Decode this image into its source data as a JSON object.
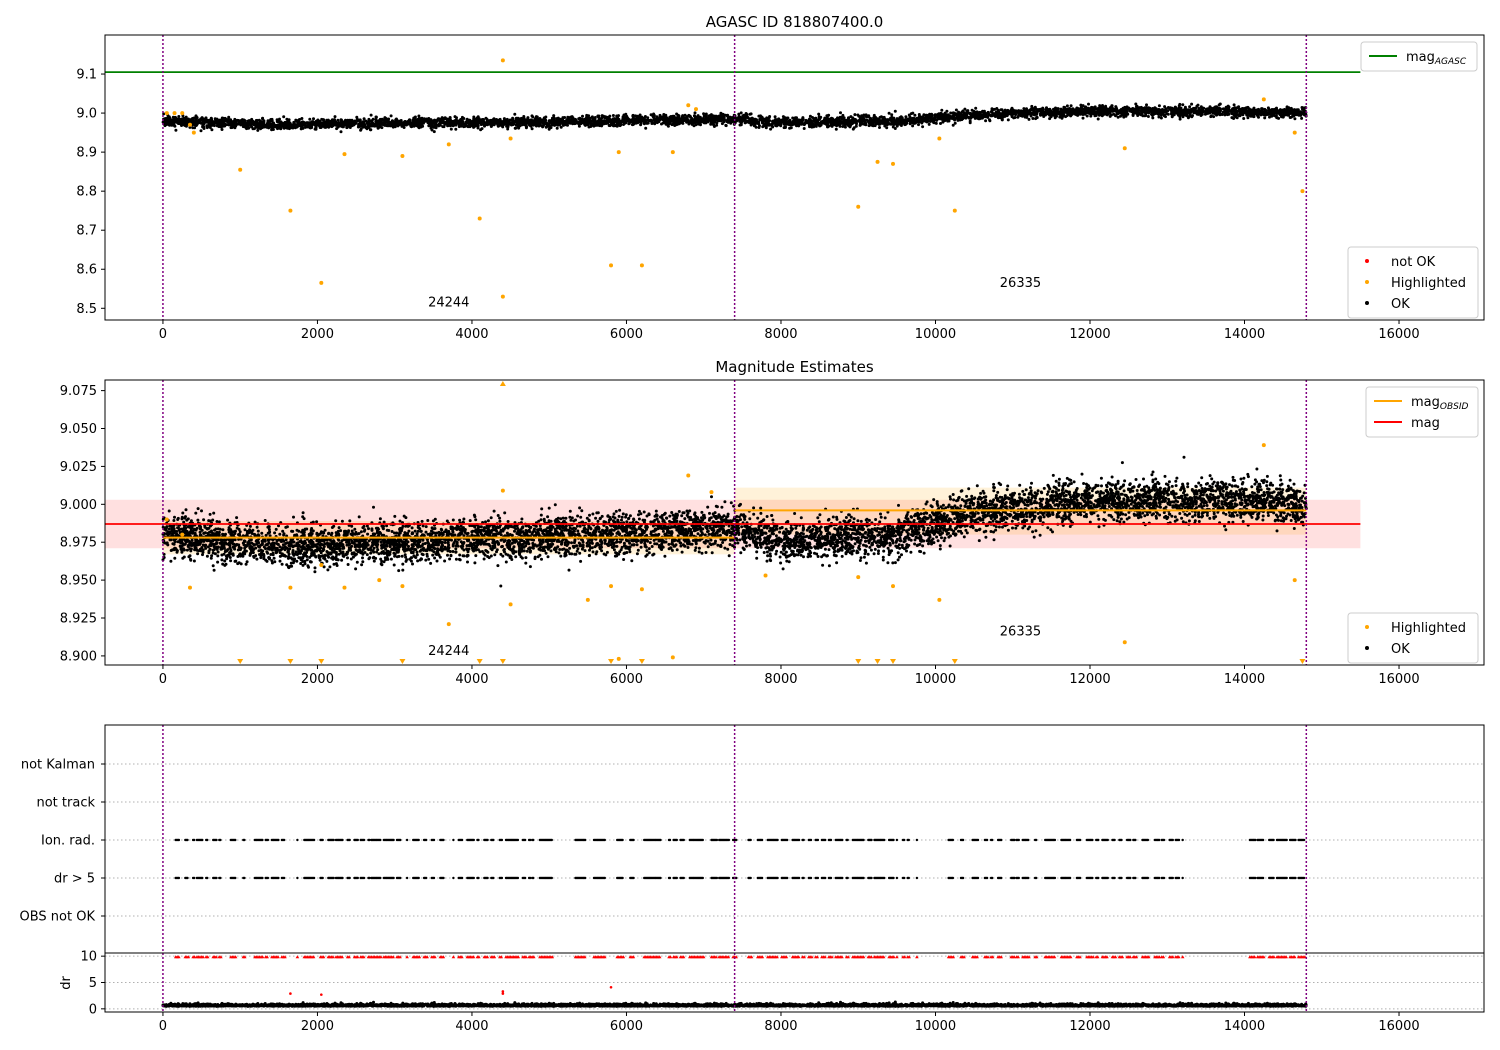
{
  "chart_data": [
    {
      "type": "scatter",
      "title": "AGASC ID 818807400.0",
      "xlim": [
        -750,
        17100
      ],
      "ylim": [
        8.47,
        9.2
      ],
      "xticks": [
        0,
        2000,
        4000,
        6000,
        8000,
        10000,
        12000,
        14000,
        16000
      ],
      "xtick_labels": [
        "0",
        "2000",
        "4000",
        "6000",
        "8000",
        "10000",
        "12000",
        "14000",
        "16000"
      ],
      "yticks": [
        8.5,
        8.6,
        8.7,
        8.8,
        8.9,
        9.0,
        9.1
      ],
      "ytick_labels": [
        "8.5",
        "8.6",
        "8.7",
        "8.8",
        "8.9",
        "9.0",
        "9.1"
      ],
      "obsid_boundaries": [
        0,
        7400,
        14800
      ],
      "obsid_labels": [
        {
          "text": "24244",
          "x": 3700,
          "y": 8.505
        },
        {
          "text": "26335",
          "x": 11100,
          "y": 8.555
        }
      ],
      "lines": [
        {
          "name": "mag_AGASC",
          "y": 9.105,
          "x": [
            -750,
            15500
          ],
          "color": "#008000"
        }
      ],
      "ok_trend": {
        "x": [
          0,
          1500,
          3000,
          4500,
          6000,
          7400,
          8000,
          9500,
          10500,
          12000,
          13500,
          14800
        ],
        "y": [
          8.98,
          8.97,
          8.975,
          8.975,
          8.98,
          8.985,
          8.975,
          8.98,
          8.995,
          9.005,
          9.005,
          9.0
        ],
        "spread": 0.012
      },
      "highlighted": {
        "x": [
          50,
          150,
          250,
          350,
          400,
          1000,
          1650,
          2050,
          2350,
          3100,
          3700,
          4100,
          4400,
          4400,
          4500,
          5800,
          5900,
          6200,
          6600,
          6800,
          6900,
          9000,
          9250,
          9450,
          10050,
          10250,
          12450,
          14250,
          14650,
          14750
        ],
        "y": [
          9.0,
          9.0,
          9.0,
          8.97,
          8.95,
          8.855,
          8.75,
          8.565,
          8.895,
          8.89,
          8.92,
          8.73,
          9.135,
          8.53,
          8.935,
          8.61,
          8.9,
          8.61,
          8.9,
          9.02,
          9.01,
          8.76,
          8.875,
          8.87,
          8.935,
          8.75,
          8.91,
          9.035,
          8.95,
          8.8
        ]
      },
      "not_ok": {
        "x": [],
        "y": []
      },
      "legend_lines": [
        {
          "label": "mag",
          "subscript": "AGASC",
          "color": "#008000"
        }
      ],
      "legend_points": [
        {
          "label": "not OK",
          "color": "#ff0000"
        },
        {
          "label": "Highlighted",
          "color": "#ffa500"
        },
        {
          "label": "OK",
          "color": "#000000"
        }
      ],
      "legend_placement": [
        "top-right",
        "bottom-right"
      ]
    },
    {
      "type": "scatter",
      "title": "Magnitude Estimates",
      "xlim": [
        -750,
        17100
      ],
      "ylim": [
        8.894,
        9.082
      ],
      "xticks": [
        0,
        2000,
        4000,
        6000,
        8000,
        10000,
        12000,
        14000,
        16000
      ],
      "xtick_labels": [
        "0",
        "2000",
        "4000",
        "6000",
        "8000",
        "10000",
        "12000",
        "14000",
        "16000"
      ],
      "yticks": [
        8.9,
        8.925,
        8.95,
        8.975,
        9.0,
        9.025,
        9.05,
        9.075
      ],
      "ytick_labels": [
        "8.900",
        "8.925",
        "8.950",
        "8.975",
        "9.000",
        "9.025",
        "9.050",
        "9.075"
      ],
      "obsid_boundaries": [
        0,
        7400,
        14800
      ],
      "obsid_labels": [
        {
          "text": "24244",
          "x": 3700,
          "y": 8.9005
        },
        {
          "text": "26335",
          "x": 11100,
          "y": 8.9135
        }
      ],
      "mag_line": {
        "y": 8.987,
        "x": [
          -750,
          15500
        ],
        "band": [
          8.971,
          9.003
        ],
        "color": "#ff0000"
      },
      "obsid_mags": [
        {
          "x": [
            0,
            7400
          ],
          "y": 8.978,
          "band": [
            8.967,
            8.989
          ]
        },
        {
          "x": [
            7400,
            14800
          ],
          "y": 8.996,
          "band": [
            8.98,
            9.011
          ]
        }
      ],
      "ok_trend": {
        "x": [
          0,
          1500,
          3000,
          4500,
          6000,
          7400,
          8000,
          9500,
          10500,
          12000,
          13500,
          14800
        ],
        "y": [
          8.98,
          8.972,
          8.975,
          8.978,
          8.98,
          8.985,
          8.975,
          8.98,
          8.995,
          9.002,
          9.003,
          9.0
        ],
        "spread": 0.012
      },
      "highlighted": {
        "x": [
          50,
          250,
          350,
          1650,
          2050,
          2350,
          2800,
          3100,
          3700,
          4400,
          4500,
          5500,
          5800,
          5900,
          6200,
          6600,
          6800,
          7100,
          7800,
          9000,
          9450,
          10050,
          12450,
          14250,
          14650
        ],
        "y": [
          8.99,
          8.98,
          8.945,
          8.945,
          8.96,
          8.945,
          8.95,
          8.946,
          8.921,
          9.009,
          8.934,
          8.937,
          8.946,
          8.898,
          8.944,
          8.899,
          9.019,
          9.008,
          8.953,
          8.952,
          8.946,
          8.937,
          8.909,
          9.039,
          8.95
        ]
      },
      "clipped_low_x": [
        1000,
        1650,
        2050,
        3100,
        4100,
        4400,
        5800,
        6200,
        9000,
        9250,
        9450,
        10250,
        14750
      ],
      "clipped_high_x": [
        4400
      ],
      "legend_lines": [
        {
          "label": "mag",
          "subscript": "OBSID",
          "color": "#ffa500"
        },
        {
          "label": "mag",
          "subscript": "",
          "color": "#ff0000"
        }
      ],
      "legend_points": [
        {
          "label": "Highlighted",
          "color": "#ffa500"
        },
        {
          "label": "OK",
          "color": "#000000"
        }
      ],
      "legend_placement": [
        "top-right",
        "bottom-right"
      ]
    },
    {
      "type": "scatter",
      "title": "",
      "xlim": [
        -750,
        17100
      ],
      "categories": [
        "not Kalman",
        "not track",
        "Ion. rad.",
        "dr > 5",
        "OBS not OK"
      ],
      "flag_segments": [
        [
          165,
          215
        ],
        [
          290,
          330
        ],
        [
          390,
          410
        ],
        [
          440,
          520
        ],
        [
          560,
          580
        ],
        [
          650,
          700
        ],
        [
          730,
          750
        ],
        [
          880,
          940
        ],
        [
          1040,
          1060
        ],
        [
          1190,
          1290
        ],
        [
          1330,
          1360
        ],
        [
          1410,
          1500
        ],
        [
          1540,
          1580
        ],
        [
          1740,
          1750
        ],
        [
          1830,
          1960
        ],
        [
          2040,
          2080
        ],
        [
          2140,
          2210
        ],
        [
          2240,
          2330
        ],
        [
          2390,
          2420
        ],
        [
          2480,
          2530
        ],
        [
          2560,
          2610
        ],
        [
          2660,
          2680
        ],
        [
          2700,
          2820
        ],
        [
          2860,
          2990
        ],
        [
          3030,
          3080
        ],
        [
          3160,
          3170
        ],
        [
          3240,
          3320
        ],
        [
          3380,
          3420
        ],
        [
          3480,
          3520
        ],
        [
          3590,
          3640
        ],
        [
          3760,
          3770
        ],
        [
          3830,
          3880
        ],
        [
          3940,
          4030
        ],
        [
          4070,
          4090
        ],
        [
          4160,
          4210
        ],
        [
          4250,
          4290
        ],
        [
          4360,
          4390
        ],
        [
          4440,
          4600
        ],
        [
          4660,
          4700
        ],
        [
          4740,
          4760
        ],
        [
          4780,
          4800
        ],
        [
          4880,
          5040
        ],
        [
          5340,
          5470
        ],
        [
          5580,
          5720
        ],
        [
          5880,
          5960
        ],
        [
          6050,
          6100
        ],
        [
          6230,
          6440
        ],
        [
          6550,
          6570
        ],
        [
          6610,
          6660
        ],
        [
          6700,
          6750
        ],
        [
          6820,
          7000
        ],
        [
          7100,
          7170
        ],
        [
          7200,
          7330
        ],
        [
          7380,
          7430
        ],
        [
          7580,
          7620
        ],
        [
          7700,
          7760
        ],
        [
          7830,
          7960
        ],
        [
          8010,
          8080
        ],
        [
          8150,
          8240
        ],
        [
          8280,
          8300
        ],
        [
          8360,
          8400
        ],
        [
          8450,
          8480
        ],
        [
          8530,
          8580
        ],
        [
          8620,
          8660
        ],
        [
          8710,
          8800
        ],
        [
          8850,
          8870
        ],
        [
          8930,
          9070
        ],
        [
          9130,
          9180
        ],
        [
          9210,
          9340
        ],
        [
          9400,
          9460
        ],
        [
          9500,
          9510
        ],
        [
          9580,
          9600
        ],
        [
          9640,
          9660
        ],
        [
          9760,
          9770
        ],
        [
          10170,
          10230
        ],
        [
          10330,
          10370
        ],
        [
          10480,
          10550
        ],
        [
          10640,
          10680
        ],
        [
          10720,
          10740
        ],
        [
          10810,
          10860
        ],
        [
          10980,
          11030
        ],
        [
          11050,
          11080
        ],
        [
          11130,
          11210
        ],
        [
          11290,
          11310
        ],
        [
          11420,
          11550
        ],
        [
          11630,
          11750
        ],
        [
          11830,
          11880
        ],
        [
          11960,
          12040
        ],
        [
          12080,
          12110
        ],
        [
          12160,
          12230
        ],
        [
          12290,
          12330
        ],
        [
          12380,
          12420
        ],
        [
          12480,
          12530
        ],
        [
          12560,
          12600
        ],
        [
          12680,
          12760
        ],
        [
          12840,
          12900
        ],
        [
          12930,
          12960
        ],
        [
          13030,
          13080
        ],
        [
          13110,
          13160
        ],
        [
          13200,
          13210
        ],
        [
          14070,
          14140
        ],
        [
          14170,
          14250
        ],
        [
          14320,
          14380
        ],
        [
          14420,
          14550
        ],
        [
          14590,
          14660
        ],
        [
          14700,
          14780
        ]
      ],
      "flag_rows": [
        "Ion. rad.",
        "dr > 5"
      ]
    },
    {
      "type": "scatter",
      "title": "",
      "ylabel": "dr",
      "xlim": [
        -750,
        17100
      ],
      "ylim": [
        -0.6,
        10.6
      ],
      "yticks": [
        0,
        5,
        10
      ],
      "ytick_labels": [
        "0",
        "5",
        "10"
      ],
      "xticks": [
        0,
        2000,
        4000,
        6000,
        8000,
        10000,
        12000,
        14000,
        16000
      ],
      "xtick_labels": [
        "0",
        "2000",
        "4000",
        "6000",
        "8000",
        "10000",
        "12000",
        "14000",
        "16000"
      ],
      "dr_trend": {
        "mean": 0.6,
        "spread": 0.35
      },
      "dr_outliers": {
        "x": [
          1650,
          2050,
          4400,
          4400,
          5800
        ],
        "y": [
          2.9,
          2.7,
          3.3,
          2.9,
          4.1
        ]
      },
      "clipped_high_segments": "same-as-flags"
    }
  ]
}
